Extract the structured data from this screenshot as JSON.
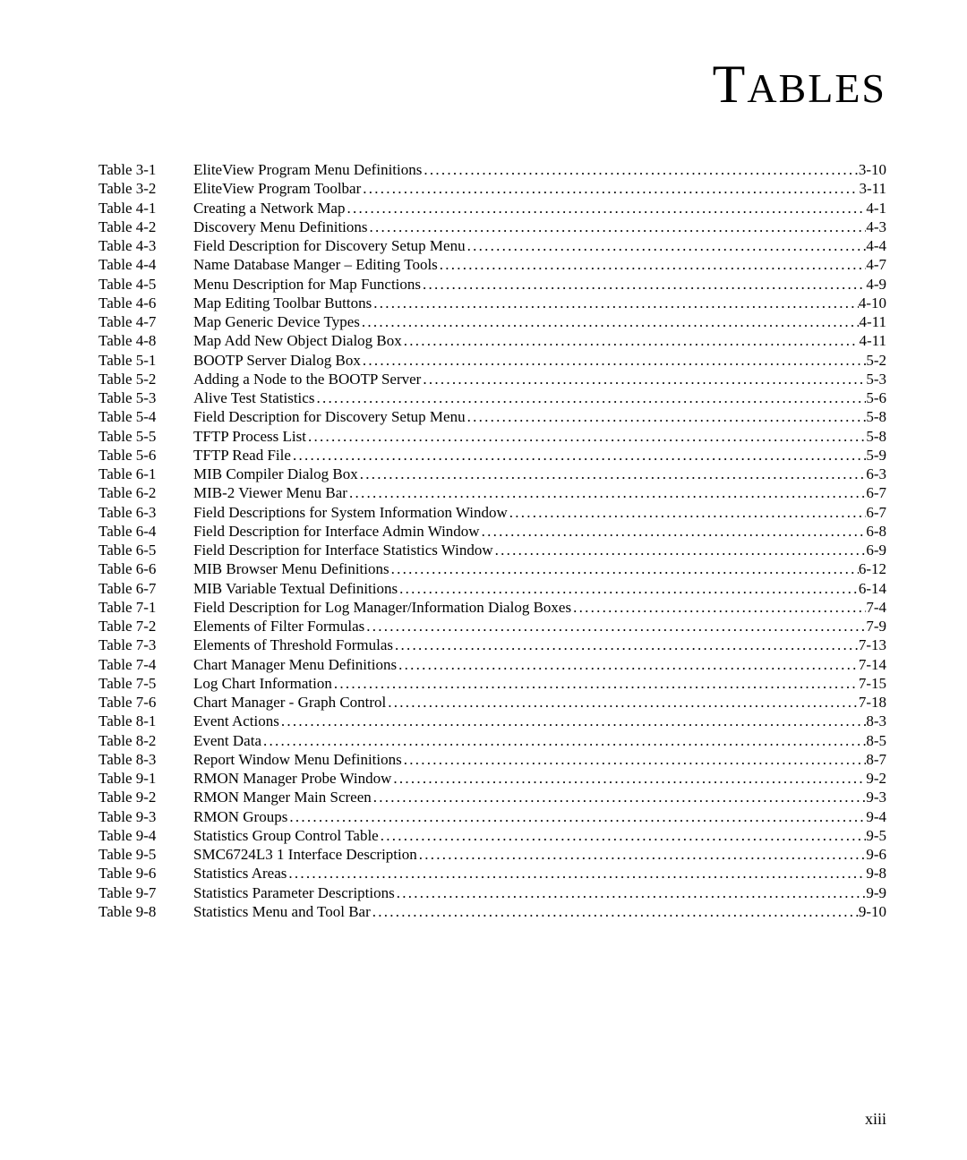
{
  "title_html": "T<span style=\"font-size:34px\">ABLES</span>",
  "page_number": "xiii",
  "entries": [
    {
      "label": "Table 3-1",
      "desc": "EliteView Program Menu Definitions",
      "page": "3-10"
    },
    {
      "label": "Table 3-2",
      "desc": "EliteView Program Toolbar",
      "page": "3-11"
    },
    {
      "label": "Table 4-1",
      "desc": "Creating a Network Map",
      "page": "4-1"
    },
    {
      "label": "Table 4-2",
      "desc": "Discovery Menu Definitions",
      "page": "4-3"
    },
    {
      "label": "Table 4-3",
      "desc": "Field Description for Discovery Setup Menu",
      "page": "4-4"
    },
    {
      "label": "Table 4-4",
      "desc": "Name Database Manger – Editing Tools",
      "page": "4-7"
    },
    {
      "label": "Table 4-5",
      "desc": "Menu Description for Map Functions",
      "page": "4-9"
    },
    {
      "label": "Table 4-6",
      "desc": "Map Editing Toolbar Buttons",
      "page": "4-10"
    },
    {
      "label": "Table 4-7",
      "desc": "Map Generic Device Types",
      "page": "4-11"
    },
    {
      "label": "Table 4-8",
      "desc": "Map Add New Object Dialog Box",
      "page": "4-11"
    },
    {
      "label": "Table 5-1",
      "desc": "BOOTP Server Dialog Box",
      "page": "5-2"
    },
    {
      "label": "Table 5-2",
      "desc": "Adding a Node to the BOOTP Server",
      "page": "5-3"
    },
    {
      "label": "Table 5-3",
      "desc": "Alive Test Statistics",
      "page": "5-6"
    },
    {
      "label": "Table 5-4",
      "desc": "Field Description for Discovery Setup Menu",
      "page": "5-8"
    },
    {
      "label": "Table 5-5",
      "desc": "TFTP Process List",
      "page": "5-8"
    },
    {
      "label": "Table 5-6",
      "desc": "TFTP Read File",
      "page": "5-9"
    },
    {
      "label": "Table 6-1",
      "desc": "MIB Compiler Dialog Box",
      "page": "6-3"
    },
    {
      "label": "Table 6-2",
      "desc": "MIB-2 Viewer Menu Bar",
      "page": "6-7"
    },
    {
      "label": "Table 6-3",
      "desc": "Field Descriptions for System Information Window",
      "page": "6-7"
    },
    {
      "label": "Table 6-4",
      "desc": "Field Description for Interface Admin Window",
      "page": "6-8"
    },
    {
      "label": "Table 6-5",
      "desc": "Field Description for Interface Statistics Window",
      "page": "6-9"
    },
    {
      "label": "Table 6-6",
      "desc": "MIB Browser Menu Definitions",
      "page": "6-12"
    },
    {
      "label": "Table 6-7",
      "desc": "MIB Variable Textual Definitions",
      "page": "6-14"
    },
    {
      "label": "Table 7-1",
      "desc": "Field Description for Log Manager/Information Dialog Boxes",
      "page": "7-4"
    },
    {
      "label": "Table 7-2",
      "desc": "Elements of Filter Formulas",
      "page": "7-9"
    },
    {
      "label": "Table 7-3",
      "desc": "Elements of Threshold Formulas",
      "page": "7-13"
    },
    {
      "label": "Table 7-4",
      "desc": "Chart Manager Menu Definitions",
      "page": "7-14"
    },
    {
      "label": "Table 7-5",
      "desc": "Log Chart Information",
      "page": "7-15"
    },
    {
      "label": "Table 7-6",
      "desc": "Chart Manager - Graph Control",
      "page": "7-18"
    },
    {
      "label": "Table 8-1",
      "desc": "Event Actions",
      "page": "8-3"
    },
    {
      "label": "Table 8-2",
      "desc": "Event Data",
      "page": "8-5"
    },
    {
      "label": "Table 8-3",
      "desc": "Report Window Menu Definitions",
      "page": "8-7"
    },
    {
      "label": "Table 9-1",
      "desc": "RMON Manager Probe Window",
      "page": "9-2"
    },
    {
      "label": "Table 9-2",
      "desc": "RMON Manger Main Screen",
      "page": "9-3"
    },
    {
      "label": "Table 9-3",
      "desc": "RMON Groups",
      "page": "9-4"
    },
    {
      "label": "Table 9-4",
      "desc": "Statistics Group Control Table",
      "page": "9-5"
    },
    {
      "label": "Table 9-5",
      "desc": "SMC6724L3 1 Interface Description",
      "page": "9-6"
    },
    {
      "label": "Table 9-6",
      "desc": "Statistics Areas",
      "page": "9-8"
    },
    {
      "label": "Table 9-7",
      "desc": "Statistics Parameter Descriptions",
      "page": "9-9"
    },
    {
      "label": "Table 9-8",
      "desc": "Statistics Menu and Tool Bar",
      "page": "9-10"
    }
  ]
}
